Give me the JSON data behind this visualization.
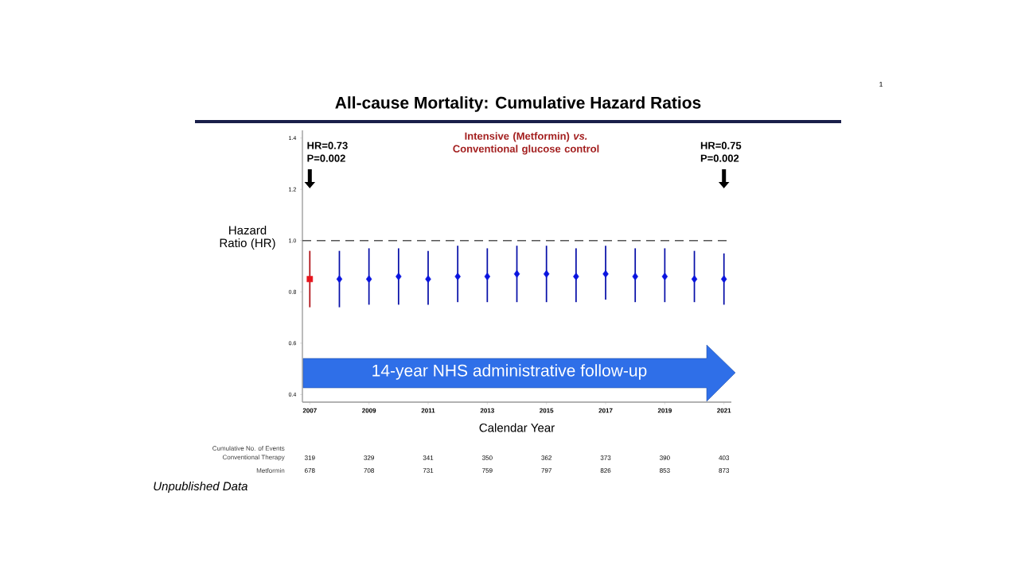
{
  "chart_data": {
    "type": "scatter",
    "title": "All-cause Mortality: Cumulative Hazard Ratios",
    "subtitle": "Intensive (Metformin) *vs.* Conventional glucose control",
    "xlabel": "Calendar Year",
    "ylabel": "Hazard Ratio (HR)",
    "xlim": [
      2006.75,
      2021.25
    ],
    "xticks": [
      2007,
      2009,
      2011,
      2013,
      2015,
      2017,
      2019,
      2021
    ],
    "ylim": [
      0.37,
      1.43
    ],
    "yticks": [
      0.4,
      0.6,
      0.8,
      {
        "value": 1.0,
        "label": "1.0"
      },
      1.2,
      1.4
    ],
    "series": [
      {
        "marker": "square",
        "color": "#e8141c",
        "x": [
          2007
        ],
        "values": [
          0.85
        ],
        "errors": [
          [
            0.74,
            0.96
          ]
        ]
      },
      {
        "marker": "diamond",
        "color": "#0a14e0",
        "x": [
          2008,
          2009,
          2010,
          2011,
          2012,
          2013,
          2014,
          2015,
          2016,
          2017,
          2018,
          2019,
          2020,
          2021
        ],
        "values": [
          0.85,
          0.85,
          0.86,
          0.85,
          0.86,
          0.86,
          0.87,
          0.87,
          0.86,
          0.87,
          0.86,
          0.86,
          0.85,
          0.85
        ],
        "errors": [
          [
            0.74,
            0.96
          ],
          [
            0.75,
            0.97
          ],
          [
            0.75,
            0.97
          ],
          [
            0.75,
            0.96
          ],
          [
            0.76,
            0.98
          ],
          [
            0.76,
            0.97
          ],
          [
            0.76,
            0.98
          ],
          [
            0.76,
            0.98
          ],
          [
            0.76,
            0.97
          ],
          [
            0.77,
            0.98
          ],
          [
            0.76,
            0.97
          ],
          [
            0.76,
            0.97
          ],
          [
            0.76,
            0.96
          ],
          [
            0.75,
            0.95
          ]
        ]
      }
    ],
    "ref_lines": [
      {
        "axis": "y",
        "value": 1.0,
        "color": "#555555",
        "line_style": "dashed"
      }
    ],
    "annotations": [
      "HR=0.73 P=0.002",
      "HR=0.75 P=0.002",
      "14-year NHS administrative follow-up",
      "Cumulative No. of Events",
      "Conventional Therapy",
      "Metformin",
      "319",
      "329",
      "341",
      "350",
      "362",
      "373",
      "390",
      "403",
      "678",
      "708",
      "731",
      "759",
      "797",
      "826",
      "853",
      "873",
      "Unpublished Data",
      "1"
    ]
  }
}
